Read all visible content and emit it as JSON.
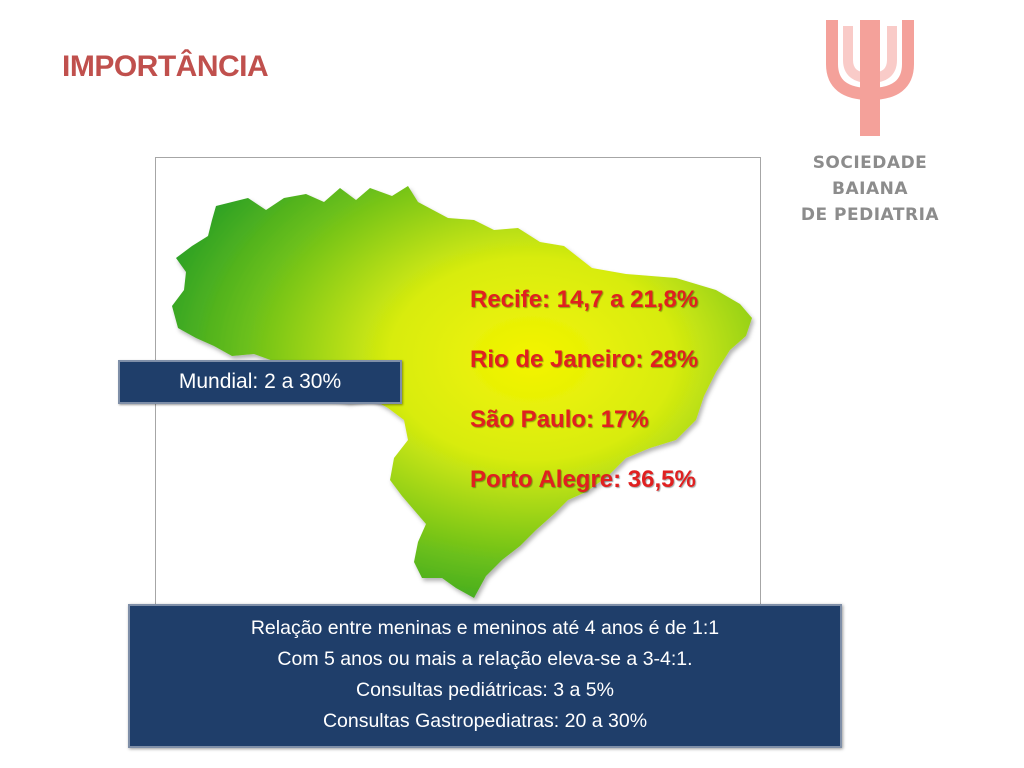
{
  "slide": {
    "title": "IMPORTÂNCIA"
  },
  "logo": {
    "line1": "SOCIEDADE",
    "line2": "BAIANA",
    "line3": "DE PEDIATRIA",
    "symbol_color": "#f4a19a",
    "text_color": "#8c8c8c"
  },
  "map": {
    "gradient_colors": [
      "#2aa02a",
      "#f2f200",
      "#5aba1a"
    ]
  },
  "stats": [
    "Recife: 14,7 a 21,8%",
    "Rio de Janeiro: 28%",
    "São Paulo: 17%",
    "Porto Alegre: 36,5%"
  ],
  "mundial_label": "Mundial: 2 a 30%",
  "info_lines": [
    "Relação entre meninas e meninos até 4 anos é de 1:1",
    "Com 5 anos ou mais a relação eleva-se a 3-4:1.",
    "Consultas pediátricas: 3 a 5%",
    "Consultas Gastropediatras: 20 a 30%"
  ],
  "colors": {
    "title": "#c0504d",
    "stat_text": "#e02020",
    "box_bg": "#1f3e6a"
  }
}
